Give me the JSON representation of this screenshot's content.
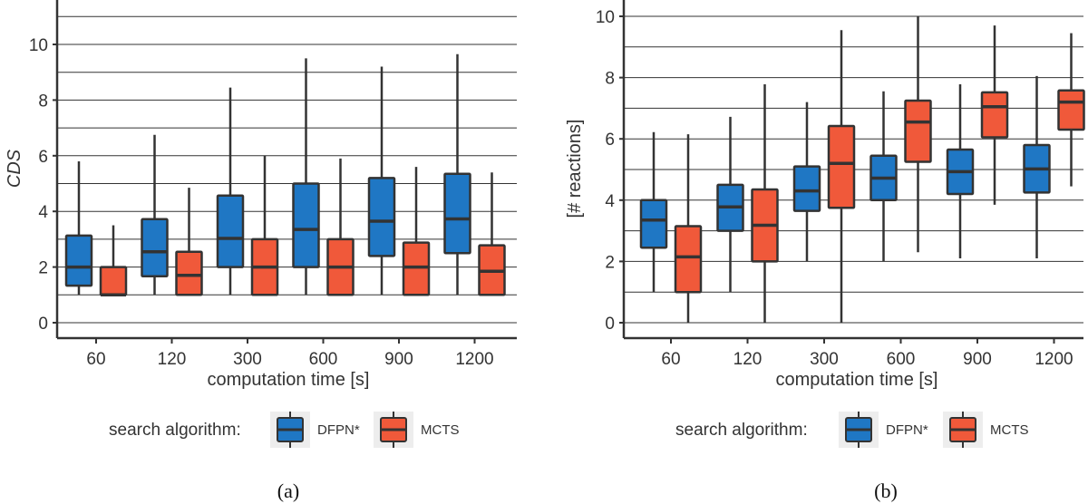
{
  "colors": {
    "dfpn": "#1f77c4",
    "mcts": "#f0593a",
    "stroke": "#333333",
    "grid": "#333333"
  },
  "legend": {
    "title": "search algorithm:",
    "items": [
      "DFPN*",
      "MCTS"
    ]
  },
  "chart_data": [
    {
      "panel": "(a)",
      "type": "box",
      "xlabel": "computation time [s]",
      "ylabel": "CDS",
      "ylim": [
        -0.5,
        11.5
      ],
      "yticks": [
        0,
        2,
        4,
        6,
        8,
        10
      ],
      "categories": [
        "60",
        "120",
        "300",
        "600",
        "900",
        "1200"
      ],
      "series": [
        {
          "name": "DFPN*",
          "boxes": [
            {
              "min": 1.0,
              "q1": 1.33,
              "median": 2.0,
              "q3": 3.13,
              "max": 5.8
            },
            {
              "min": 1.0,
              "q1": 1.67,
              "median": 2.55,
              "q3": 3.72,
              "max": 6.75
            },
            {
              "min": 1.0,
              "q1": 2.0,
              "median": 3.03,
              "q3": 4.57,
              "max": 8.45
            },
            {
              "min": 1.0,
              "q1": 2.0,
              "median": 3.35,
              "q3": 5.0,
              "max": 9.5
            },
            {
              "min": 1.0,
              "q1": 2.4,
              "median": 3.65,
              "q3": 5.2,
              "max": 9.2
            },
            {
              "min": 1.0,
              "q1": 2.5,
              "median": 3.73,
              "q3": 5.35,
              "max": 9.65
            }
          ]
        },
        {
          "name": "MCTS",
          "boxes": [
            {
              "min": 1.0,
              "q1": 1.0,
              "median": 1.0,
              "q3": 2.0,
              "max": 3.5
            },
            {
              "min": 1.0,
              "q1": 1.0,
              "median": 1.7,
              "q3": 2.55,
              "max": 4.85
            },
            {
              "min": 1.0,
              "q1": 1.0,
              "median": 2.0,
              "q3": 3.0,
              "max": 6.0
            },
            {
              "min": 1.0,
              "q1": 1.0,
              "median": 2.0,
              "q3": 3.0,
              "max": 5.9
            },
            {
              "min": 1.0,
              "q1": 1.0,
              "median": 2.0,
              "q3": 2.88,
              "max": 5.6
            },
            {
              "min": 1.0,
              "q1": 1.0,
              "median": 1.85,
              "q3": 2.78,
              "max": 5.4
            }
          ]
        }
      ]
    },
    {
      "panel": "(b)",
      "type": "box",
      "xlabel": "computation time [s]",
      "ylabel": "[# reactions]",
      "ylim": [
        -0.5,
        10.5
      ],
      "yticks": [
        0,
        2,
        4,
        6,
        8,
        10
      ],
      "categories": [
        "60",
        "120",
        "300",
        "600",
        "900",
        "1200"
      ],
      "series": [
        {
          "name": "DFPN*",
          "boxes": [
            {
              "min": 1.0,
              "q1": 2.45,
              "median": 3.35,
              "q3": 4.0,
              "max": 6.22
            },
            {
              "min": 1.0,
              "q1": 3.0,
              "median": 3.78,
              "q3": 4.5,
              "max": 6.72
            },
            {
              "min": 2.0,
              "q1": 3.65,
              "median": 4.3,
              "q3": 5.1,
              "max": 7.2
            },
            {
              "min": 2.0,
              "q1": 4.0,
              "median": 4.72,
              "q3": 5.45,
              "max": 7.55
            },
            {
              "min": 2.1,
              "q1": 4.2,
              "median": 4.93,
              "q3": 5.65,
              "max": 7.78
            },
            {
              "min": 2.1,
              "q1": 4.25,
              "median": 5.02,
              "q3": 5.8,
              "max": 8.05
            }
          ]
        },
        {
          "name": "MCTS",
          "boxes": [
            {
              "min": 0.0,
              "q1": 1.0,
              "median": 2.15,
              "q3": 3.15,
              "max": 6.15
            },
            {
              "min": 0.0,
              "q1": 2.0,
              "median": 3.18,
              "q3": 4.35,
              "max": 7.78
            },
            {
              "min": 0.0,
              "q1": 3.75,
              "median": 5.2,
              "q3": 6.42,
              "max": 9.55
            },
            {
              "min": 2.3,
              "q1": 5.25,
              "median": 6.55,
              "q3": 7.25,
              "max": 10.0
            },
            {
              "min": 3.85,
              "q1": 6.05,
              "median": 7.05,
              "q3": 7.52,
              "max": 9.7
            },
            {
              "min": 4.45,
              "q1": 6.3,
              "median": 7.2,
              "q3": 7.58,
              "max": 9.45
            }
          ]
        }
      ]
    }
  ]
}
